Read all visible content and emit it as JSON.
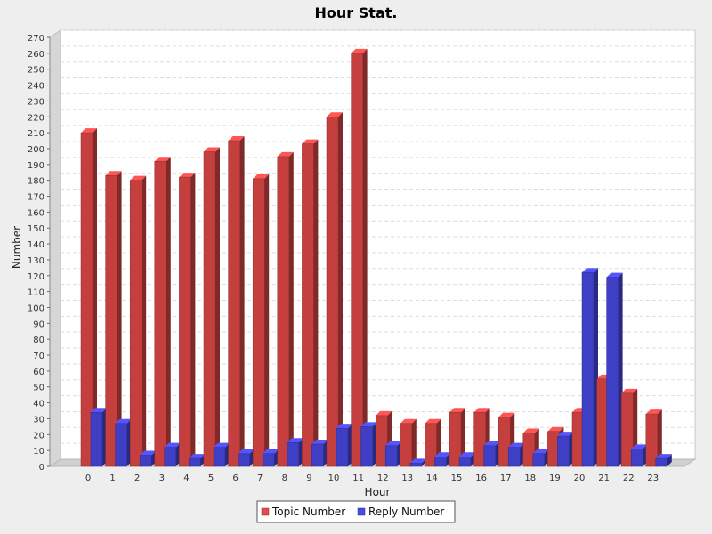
{
  "chart_data": {
    "type": "bar",
    "title": "Hour Stat.",
    "xlabel": "Hour",
    "ylabel": "Number",
    "ylim": [
      0,
      270
    ],
    "yticks": [
      0,
      10,
      20,
      30,
      40,
      50,
      60,
      70,
      80,
      90,
      100,
      110,
      120,
      130,
      140,
      150,
      160,
      170,
      180,
      190,
      200,
      210,
      220,
      230,
      240,
      250,
      260,
      270
    ],
    "grid": true,
    "legend_position": "bottom-center",
    "categories": [
      "0",
      "1",
      "2",
      "3",
      "4",
      "5",
      "6",
      "7",
      "8",
      "9",
      "10",
      "11",
      "12",
      "13",
      "14",
      "15",
      "16",
      "17",
      "18",
      "19",
      "20",
      "21",
      "22",
      "23"
    ],
    "series": [
      {
        "name": "Topic Number",
        "color": "#e84a4a",
        "values": [
          210,
          183,
          180,
          192,
          182,
          198,
          205,
          181,
          195,
          203,
          220,
          260,
          32,
          27,
          27,
          34,
          34,
          31,
          21,
          22,
          34,
          55,
          46,
          33
        ]
      },
      {
        "name": "Reply Number",
        "color": "#4a4ae8",
        "values": [
          34,
          27,
          7,
          12,
          5,
          12,
          8,
          8,
          15,
          14,
          24,
          25,
          13,
          2,
          6,
          6,
          13,
          12,
          8,
          19,
          122,
          119,
          11,
          5
        ]
      }
    ]
  }
}
